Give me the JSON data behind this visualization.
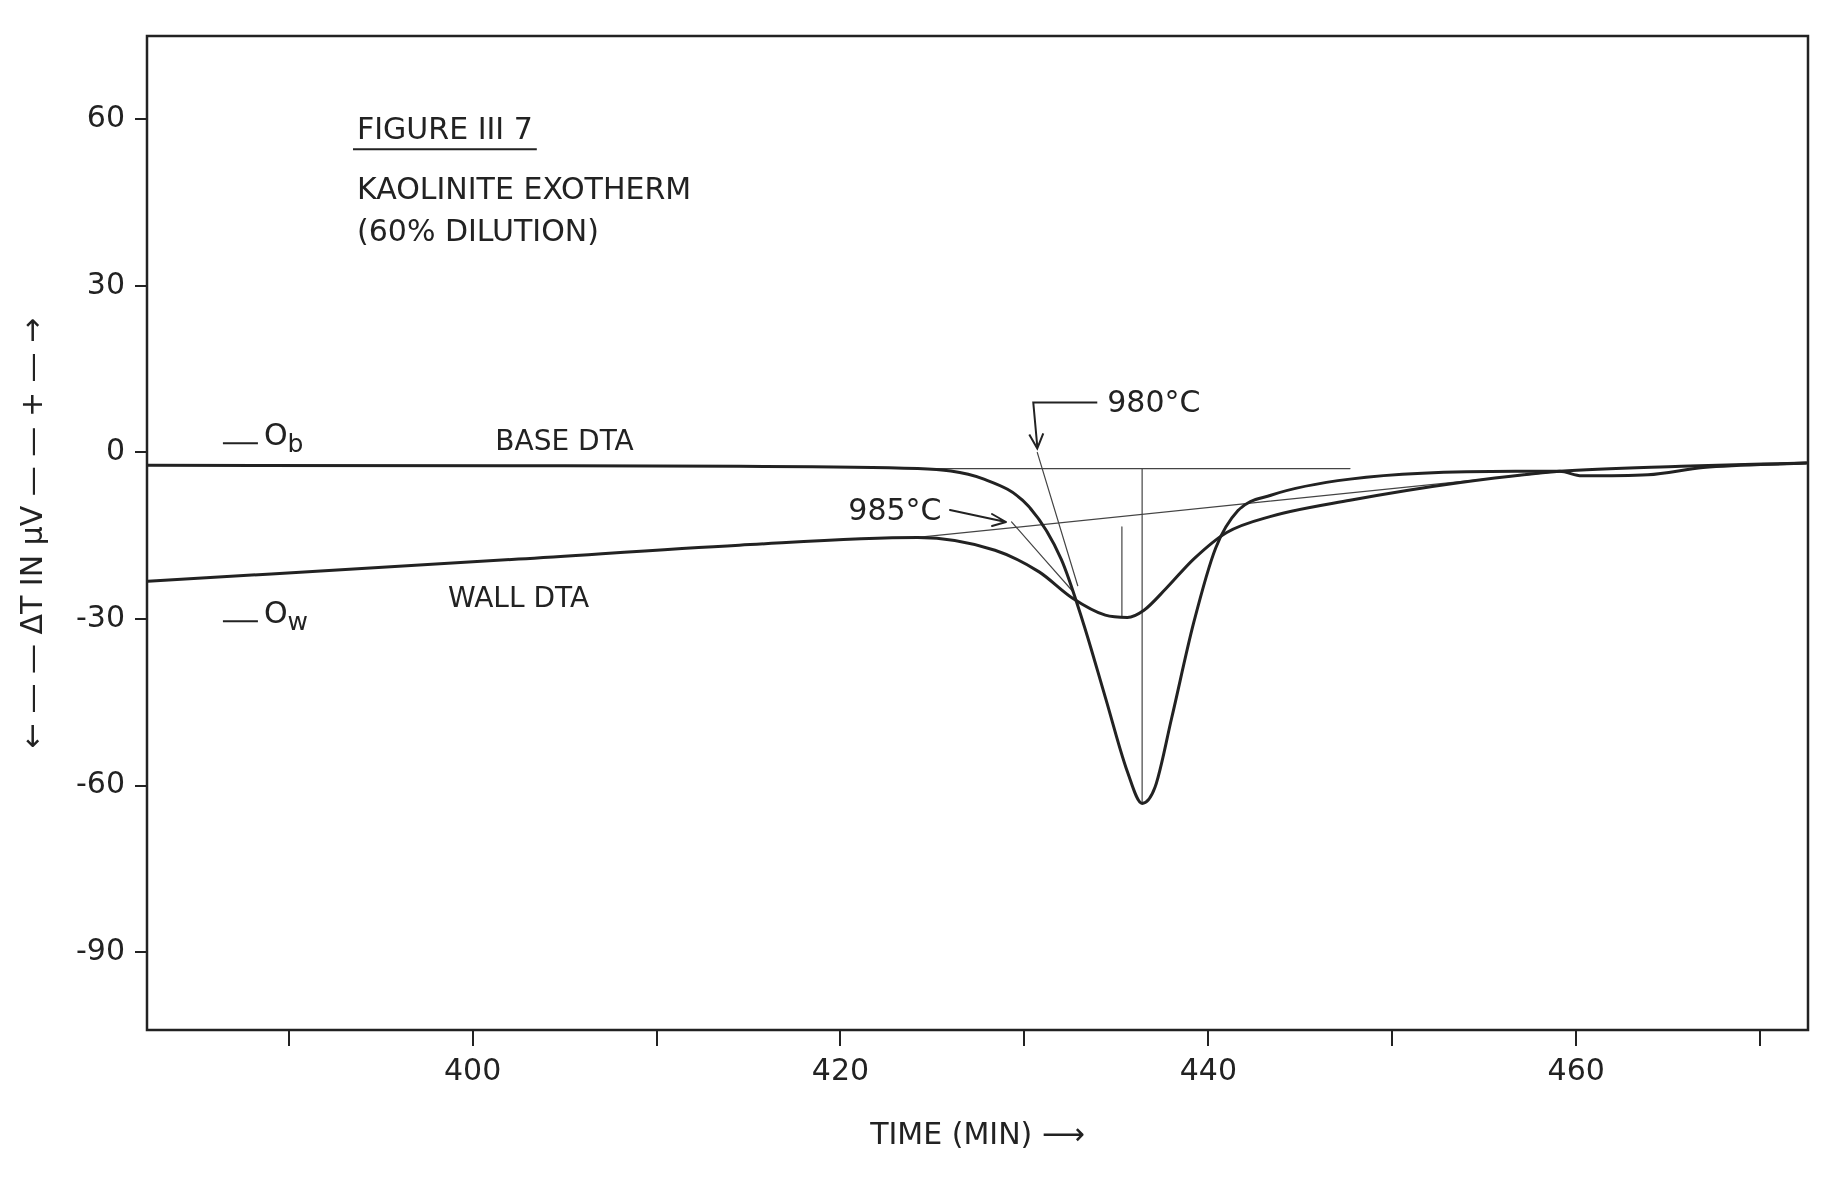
{
  "chart_data": {
    "type": "line",
    "title": "FIGURE III 7",
    "subtitle": "KAOLINITE EXOTHERM (60% DILUTION)",
    "xlabel": "TIME (MIN) ⟶",
    "ylabel": "← — — ΔT IN μV — — + — →",
    "xlim": [
      382.3,
      472.6
    ],
    "ylim": [
      -104,
      75
    ],
    "xticks": [
      {
        "value": 390,
        "label": null
      },
      400,
      {
        "value": 410,
        "label": null
      },
      420,
      {
        "value": 430,
        "label": null
      },
      440,
      {
        "value": 450,
        "label": null
      },
      460,
      {
        "value": 470,
        "label": null
      }
    ],
    "yticks": [
      60,
      30,
      0,
      -30,
      -60,
      -90
    ],
    "grid": false,
    "legend": false,
    "marker": "none",
    "line_style": "solid",
    "series": [
      {
        "name": "BASE DTA",
        "color": "#222222",
        "x": [
          382.35,
          405,
          414.5,
          424.2,
          427.8,
          430.2,
          432.0,
          433.2,
          434.4,
          435.6,
          436.4,
          437.1,
          438.0,
          439.2,
          440.4,
          441.6,
          443.4,
          447.7,
          456.7,
          459.1,
          460.3,
          463.9,
          466.9,
          472.5
        ],
        "values": [
          -2.3,
          -2.4,
          -2.5,
          -2.9,
          -4.8,
          -9.6,
          -19.2,
          -30.7,
          -44.1,
          -57.5,
          -63.2,
          -60.3,
          -47.9,
          -30.7,
          -17.2,
          -10.5,
          -7.7,
          -4.8,
          -3.4,
          -3.4,
          -4.2,
          -4.0,
          -2.7,
          -1.9
        ]
      },
      {
        "name": "WALL DTA",
        "color": "#222222",
        "x": [
          382.35,
          402.5,
          414.5,
          424.2,
          428.4,
          430.8,
          432.6,
          434.4,
          435.6,
          436.5,
          437.7,
          439.2,
          441.0,
          443.4,
          447.7,
          453.7,
          459.1,
          465.7,
          472.5
        ],
        "values": [
          -23.2,
          -19.2,
          -16.7,
          -15.3,
          -17.6,
          -21.5,
          -26.2,
          -29.3,
          -29.7,
          -28.4,
          -24.5,
          -19.2,
          -14.4,
          -11.5,
          -8.6,
          -5.4,
          -3.4,
          -2.5,
          -1.9
        ]
      },
      {
        "color": "#444444",
        "x": [
          424.2,
          447.7
        ],
        "values": [
          -2.9,
          -2.9
        ]
      },
      {
        "color": "#444444",
        "x": [
          436.4,
          436.4
        ],
        "values": [
          -2.9,
          -63.2
        ]
      },
      {
        "color": "#444444",
        "x": [
          430.7,
          432.9
        ],
        "values": [
          0,
          -24
        ]
      },
      {
        "color": "#444444",
        "x": [
          424.2,
          459.1
        ],
        "values": [
          -15.3,
          -3.4
        ]
      },
      {
        "color": "#444444",
        "x": [
          435.3,
          435.3
        ],
        "values": [
          -13.4,
          -29.7
        ]
      },
      {
        "color": "#444444",
        "x": [
          429.3,
          432.6
        ],
        "values": [
          -12.5,
          -24.9
        ]
      }
    ],
    "annotations": [
      {
        "text": "980°C",
        "x": 430.7,
        "y": 0
      },
      {
        "text": "985°C",
        "x": 429.3,
        "y": -12.5
      },
      "O$_{b}$",
      "O$_{w}$"
    ]
  }
}
